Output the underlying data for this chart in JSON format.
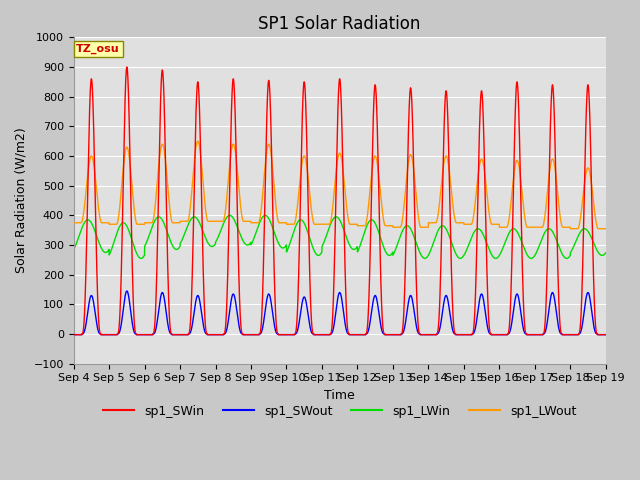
{
  "title": "SP1 Solar Radiation",
  "xlabel": "Time",
  "ylabel": "Solar Radiation (W/m2)",
  "ylim": [
    -100,
    1000
  ],
  "xlim_days": [
    0,
    15
  ],
  "tz_label": "TZ_osu",
  "series_colors": {
    "sp1_SWin": "#ff0000",
    "sp1_SWout": "#0000ff",
    "sp1_LWin": "#00dd00",
    "sp1_LWout": "#ff9900"
  },
  "legend_labels": [
    "sp1_SWin",
    "sp1_SWout",
    "sp1_LWin",
    "sp1_LWout"
  ],
  "x_tick_labels": [
    "Sep 4",
    "Sep 5",
    "Sep 6",
    "Sep 7",
    "Sep 8",
    "Sep 9",
    "Sep 10",
    "Sep 11",
    "Sep 12",
    "Sep 13",
    "Sep 14",
    "Sep 15",
    "Sep 16",
    "Sep 17",
    "Sep 18",
    "Sep 19"
  ],
  "background_color": "#c8c8c8",
  "plot_bg_color": "#e0e0e0",
  "grid_color": "#ffffff",
  "title_fontsize": 12,
  "axis_fontsize": 9,
  "tick_fontsize": 8,
  "legend_fontsize": 9,
  "sw_peaks": [
    860,
    900,
    890,
    850,
    860,
    855,
    850,
    860,
    840,
    830,
    820,
    820,
    850,
    840,
    840
  ],
  "sw_out_peaks": [
    130,
    145,
    140,
    130,
    135,
    135,
    125,
    140,
    130,
    130,
    130,
    135,
    135,
    140,
    140
  ],
  "lw_out_peaks": [
    600,
    630,
    640,
    650,
    640,
    640,
    600,
    610,
    600,
    605,
    600,
    590,
    585,
    590,
    560
  ],
  "lw_out_base": [
    375,
    370,
    375,
    380,
    380,
    375,
    370,
    370,
    365,
    360,
    375,
    370,
    360,
    360,
    355
  ],
  "lw_in_base": [
    330,
    315,
    340,
    345,
    350,
    345,
    325,
    340,
    325,
    310,
    310,
    305,
    305,
    305,
    310
  ],
  "lw_in_amp": [
    55,
    60,
    55,
    50,
    50,
    55,
    60,
    55,
    60,
    55,
    55,
    50,
    50,
    50,
    45
  ]
}
